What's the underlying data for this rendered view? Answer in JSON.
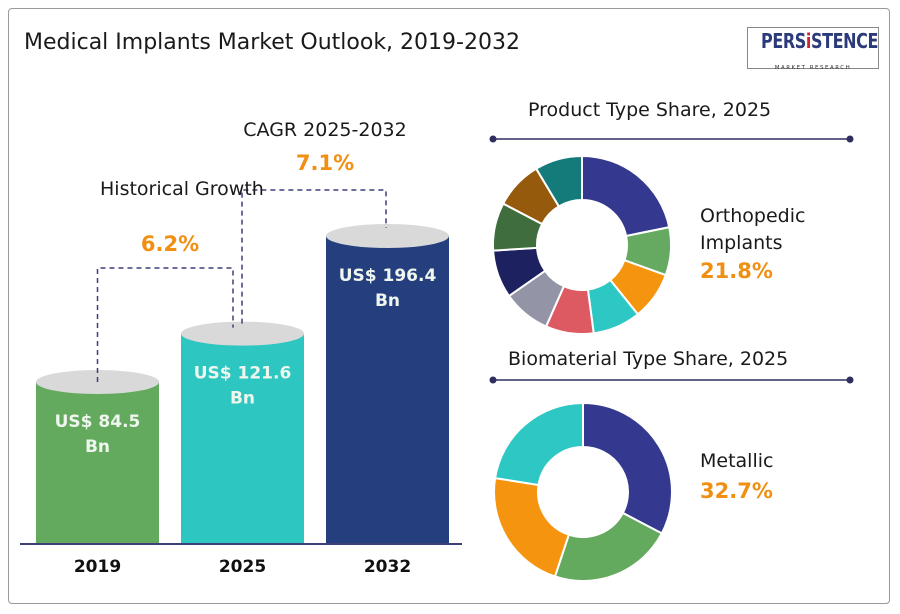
{
  "title": "Medical Implants Market Outlook, 2019-2032",
  "logo": {
    "brand": "PERSISTENCE",
    "tagline": "MARKET RESEARCH"
  },
  "chart_data": [
    {
      "type": "bar",
      "categories": [
        "2019",
        "2025",
        "2032"
      ],
      "values": [
        84.5,
        121.6,
        196.4
      ],
      "value_labels": [
        "US$ 84.5 Bn",
        "US$ 121.6 Bn",
        "US$ 196.4 Bn"
      ],
      "unit": "US$ Bn",
      "colors": [
        "#63a95e",
        "#2ec6c1",
        "#253f7e"
      ],
      "annotations": [
        {
          "label": "Historical Growth",
          "value": "6.2%",
          "from": "2019",
          "to": "2025"
        },
        {
          "label": "CAGR 2025-2032",
          "value": "7.1%",
          "from": "2025",
          "to": "2032"
        }
      ]
    },
    {
      "type": "pie",
      "title": "Product Type Share, 2025",
      "highlight": {
        "label": "Orthopedic Implants",
        "value": "21.8%"
      },
      "values": [
        21.8,
        8.7,
        8.7,
        8.7,
        8.7,
        8.7,
        8.7,
        8.7,
        8.7,
        8.6
      ],
      "colors": [
        "#35388f",
        "#66aa62",
        "#f5940f",
        "#2dc8c4",
        "#dd5a62",
        "#9394a6",
        "#1e2160",
        "#3f6d3e",
        "#955a0b",
        "#157a7a"
      ]
    },
    {
      "type": "pie",
      "title": "Biomaterial Type Share, 2025",
      "highlight": {
        "label": "Metallic",
        "value": "32.7%"
      },
      "values": [
        32.7,
        22.4,
        22.4,
        22.5
      ],
      "colors": [
        "#35388f",
        "#63a95e",
        "#f5940f",
        "#2dc8c4"
      ]
    }
  ],
  "accent": "#f08f12"
}
